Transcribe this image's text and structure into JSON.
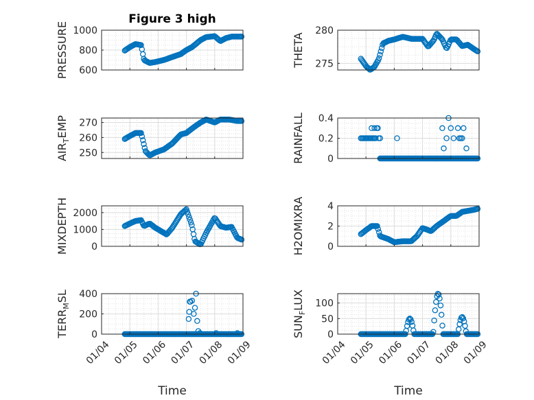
{
  "figure": {
    "title": "Figure 3 high",
    "marker_color": "#0072BD",
    "grid": true,
    "minor_grid": true
  },
  "chart_data": [
    {
      "type": "scatter",
      "id": "pressure",
      "title": "Figure 3 high",
      "ylabel_main": "PRESSURE",
      "ylabel_sub": "",
      "ylabel_rest": "",
      "xlabel": "",
      "xlim": [
        0,
        5
      ],
      "ylim": [
        600,
        1000
      ],
      "yticks": [
        600,
        800,
        1000
      ],
      "ytick_labels": [
        "600",
        "800",
        "1000"
      ],
      "xticks": [
        0,
        1,
        2,
        3,
        4,
        5
      ],
      "xtick_labels": [],
      "anchors": [
        [
          0.82,
          795
        ],
        [
          1.0,
          830
        ],
        [
          1.2,
          860
        ],
        [
          1.4,
          850
        ],
        [
          1.5,
          700
        ],
        [
          1.7,
          670
        ],
        [
          1.9,
          680
        ],
        [
          2.2,
          700
        ],
        [
          2.5,
          730
        ],
        [
          2.8,
          760
        ],
        [
          3.0,
          800
        ],
        [
          3.2,
          830
        ],
        [
          3.5,
          900
        ],
        [
          3.7,
          930
        ],
        [
          4.0,
          940
        ],
        [
          4.2,
          890
        ],
        [
          4.4,
          920
        ],
        [
          4.6,
          935
        ],
        [
          4.8,
          935
        ],
        [
          4.95,
          935
        ]
      ]
    },
    {
      "type": "scatter",
      "id": "theta",
      "ylabel_main": "THETA",
      "ylabel_sub": "",
      "ylabel_rest": "",
      "xlabel": "",
      "xlim": [
        0,
        5
      ],
      "ylim": [
        274,
        280
      ],
      "yticks": [
        275,
        280
      ],
      "ytick_labels": [
        "275",
        "280"
      ],
      "xticks": [
        0,
        1,
        2,
        3,
        4,
        5
      ],
      "xtick_labels": [],
      "anchors": [
        [
          0.82,
          275.7
        ],
        [
          1.0,
          274.6
        ],
        [
          1.15,
          274.0
        ],
        [
          1.3,
          274.5
        ],
        [
          1.45,
          275.6
        ],
        [
          1.6,
          278.0
        ],
        [
          1.8,
          278.4
        ],
        [
          2.0,
          278.6
        ],
        [
          2.3,
          279.0
        ],
        [
          2.6,
          278.7
        ],
        [
          3.0,
          278.7
        ],
        [
          3.2,
          277.5
        ],
        [
          3.4,
          278.5
        ],
        [
          3.5,
          279.5
        ],
        [
          3.7,
          278.6
        ],
        [
          3.85,
          277.2
        ],
        [
          4.0,
          278.6
        ],
        [
          4.2,
          278.6
        ],
        [
          4.4,
          277.6
        ],
        [
          4.6,
          277.8
        ],
        [
          4.8,
          277.2
        ],
        [
          4.95,
          276.8
        ]
      ]
    },
    {
      "type": "scatter",
      "id": "air_temp",
      "ylabel_main": "AIR",
      "ylabel_sub": "T",
      "ylabel_rest": "EMP",
      "xlabel": "",
      "xlim": [
        0,
        5
      ],
      "ylim": [
        246,
        273
      ],
      "yticks": [
        250,
        260,
        270
      ],
      "ytick_labels": [
        "250",
        "260",
        "270"
      ],
      "xticks": [
        0,
        1,
        2,
        3,
        4,
        5
      ],
      "xtick_labels": [],
      "anchors": [
        [
          0.82,
          259
        ],
        [
          1.0,
          261
        ],
        [
          1.2,
          263
        ],
        [
          1.4,
          263
        ],
        [
          1.55,
          251
        ],
        [
          1.7,
          248
        ],
        [
          1.9,
          250
        ],
        [
          2.2,
          252
        ],
        [
          2.5,
          256
        ],
        [
          2.8,
          262
        ],
        [
          3.0,
          263
        ],
        [
          3.2,
          266
        ],
        [
          3.5,
          270
        ],
        [
          3.7,
          272
        ],
        [
          4.0,
          270
        ],
        [
          4.2,
          272
        ],
        [
          4.5,
          272
        ],
        [
          4.8,
          271
        ],
        [
          4.95,
          271
        ]
      ]
    },
    {
      "type": "scatter",
      "id": "rainfall",
      "ylabel_main": "RAINFALL",
      "ylabel_sub": "",
      "ylabel_rest": "",
      "xlabel": "",
      "xlim": [
        0,
        5
      ],
      "ylim": [
        0,
        0.4
      ],
      "yticks": [
        0,
        0.2,
        0.4
      ],
      "ytick_labels": [
        "0",
        "0.2",
        "0.4"
      ],
      "xticks": [
        0,
        1,
        2,
        3,
        4,
        5
      ],
      "xtick_labels": [],
      "points": [
        [
          0.82,
          0.2
        ],
        [
          0.86,
          0.2
        ],
        [
          0.9,
          0.2
        ],
        [
          0.94,
          0.2
        ],
        [
          0.98,
          0.2
        ],
        [
          1.02,
          0.2
        ],
        [
          1.06,
          0.2
        ],
        [
          1.1,
          0.2
        ],
        [
          1.14,
          0.2
        ],
        [
          1.18,
          0.2
        ],
        [
          1.22,
          0.2
        ],
        [
          1.26,
          0.2
        ],
        [
          1.3,
          0.2
        ],
        [
          1.34,
          0.2
        ],
        [
          1.2,
          0.3
        ],
        [
          1.3,
          0.3
        ],
        [
          1.38,
          0.3
        ],
        [
          1.42,
          0.3
        ],
        [
          1.45,
          0.2
        ],
        [
          1.5,
          0.2
        ],
        [
          2.1,
          0.2
        ],
        [
          3.7,
          0.3
        ],
        [
          3.75,
          0.1
        ],
        [
          3.85,
          0.2
        ],
        [
          3.92,
          0.4
        ],
        [
          4.0,
          0.3
        ],
        [
          4.1,
          0.2
        ],
        [
          4.25,
          0.3
        ],
        [
          4.3,
          0.2
        ],
        [
          4.35,
          0.2
        ],
        [
          4.4,
          0.2
        ],
        [
          4.45,
          0.3
        ],
        [
          4.55,
          0.1
        ]
      ],
      "anchors": [
        [
          1.5,
          0
        ],
        [
          4.95,
          0
        ]
      ]
    },
    {
      "type": "scatter",
      "id": "mixdepth",
      "ylabel_main": "MIXDEPTH",
      "ylabel_sub": "",
      "ylabel_rest": "",
      "xlabel": "",
      "xlim": [
        0,
        5
      ],
      "ylim": [
        0,
        2400
      ],
      "yticks": [
        0,
        1000,
        2000
      ],
      "ytick_labels": [
        "0",
        "1000",
        "2000"
      ],
      "xticks": [
        0,
        1,
        2,
        3,
        4,
        5
      ],
      "xtick_labels": [],
      "anchors": [
        [
          0.82,
          1200
        ],
        [
          1.0,
          1350
        ],
        [
          1.2,
          1500
        ],
        [
          1.4,
          1550
        ],
        [
          1.5,
          1200
        ],
        [
          1.7,
          1350
        ],
        [
          1.9,
          1100
        ],
        [
          2.1,
          900
        ],
        [
          2.3,
          700
        ],
        [
          2.5,
          1100
        ],
        [
          2.8,
          1900
        ],
        [
          3.0,
          2200
        ],
        [
          3.2,
          1200
        ],
        [
          3.3,
          300
        ],
        [
          3.5,
          100
        ],
        [
          3.7,
          800
        ],
        [
          4.0,
          1700
        ],
        [
          4.2,
          1200
        ],
        [
          4.4,
          1100
        ],
        [
          4.6,
          1150
        ],
        [
          4.8,
          500
        ],
        [
          4.95,
          400
        ]
      ]
    },
    {
      "type": "scatter",
      "id": "h2omixra",
      "ylabel_main": "H2OMIXRA",
      "ylabel_sub": "",
      "ylabel_rest": "",
      "xlabel": "",
      "xlim": [
        0,
        5
      ],
      "ylim": [
        0,
        4
      ],
      "yticks": [
        0,
        2,
        4
      ],
      "ytick_labels": [
        "0",
        "2",
        "4"
      ],
      "xticks": [
        0,
        1,
        2,
        3,
        4,
        5
      ],
      "xtick_labels": [],
      "anchors": [
        [
          0.82,
          1.2
        ],
        [
          1.0,
          1.6
        ],
        [
          1.2,
          2.0
        ],
        [
          1.4,
          2.0
        ],
        [
          1.5,
          1.0
        ],
        [
          1.8,
          0.7
        ],
        [
          2.0,
          0.4
        ],
        [
          2.3,
          0.5
        ],
        [
          2.6,
          0.5
        ],
        [
          2.8,
          1.0
        ],
        [
          3.0,
          1.8
        ],
        [
          3.3,
          1.5
        ],
        [
          3.5,
          2.0
        ],
        [
          3.7,
          2.4
        ],
        [
          4.0,
          3.0
        ],
        [
          4.2,
          3.0
        ],
        [
          4.4,
          3.4
        ],
        [
          4.6,
          3.5
        ],
        [
          4.8,
          3.6
        ],
        [
          4.95,
          3.7
        ]
      ]
    },
    {
      "type": "scatter",
      "id": "terr_msl",
      "ylabel_main": "TERR",
      "ylabel_sub": "M",
      "ylabel_rest": "SL",
      "xlabel": "Time",
      "xlim": [
        0,
        5
      ],
      "ylim": [
        0,
        400
      ],
      "yticks": [
        0,
        200,
        400
      ],
      "ytick_labels": [
        "0",
        "200",
        "400"
      ],
      "xticks": [
        0,
        1,
        2,
        3,
        4,
        5
      ],
      "xtick_labels": [
        "01/04",
        "01/05",
        "01/06",
        "01/07",
        "01/08",
        "01/09"
      ],
      "points": [
        [
          3.08,
          150
        ],
        [
          3.1,
          220
        ],
        [
          3.12,
          320
        ],
        [
          3.14,
          320
        ],
        [
          3.2,
          330
        ],
        [
          3.26,
          200
        ],
        [
          3.3,
          260
        ],
        [
          3.34,
          400
        ],
        [
          3.38,
          130
        ],
        [
          3.42,
          30
        ],
        [
          3.48,
          10
        ],
        [
          4.05,
          10
        ],
        [
          4.5,
          0
        ],
        [
          4.8,
          10
        ]
      ],
      "anchors": [
        [
          0.82,
          0
        ],
        [
          4.95,
          0
        ]
      ]
    },
    {
      "type": "scatter",
      "id": "sun_flux",
      "ylabel_main": "SUN",
      "ylabel_sub": "F",
      "ylabel_rest": "LUX",
      "xlabel": "Time",
      "xlim": [
        0,
        5
      ],
      "ylim": [
        0,
        130
      ],
      "yticks": [
        0,
        50,
        100
      ],
      "ytick_labels": [
        "0",
        "50",
        "100"
      ],
      "xticks": [
        0,
        1,
        2,
        3,
        4,
        5
      ],
      "xtick_labels": [
        "01/04",
        "01/05",
        "01/06",
        "01/07",
        "01/08",
        "01/09"
      ],
      "pulses": [
        [
          2.55,
          0.3,
          50
        ],
        [
          3.55,
          0.35,
          130
        ],
        [
          4.4,
          0.3,
          55
        ]
      ],
      "anchors": [
        [
          0.82,
          0
        ],
        [
          4.95,
          0
        ]
      ]
    }
  ]
}
